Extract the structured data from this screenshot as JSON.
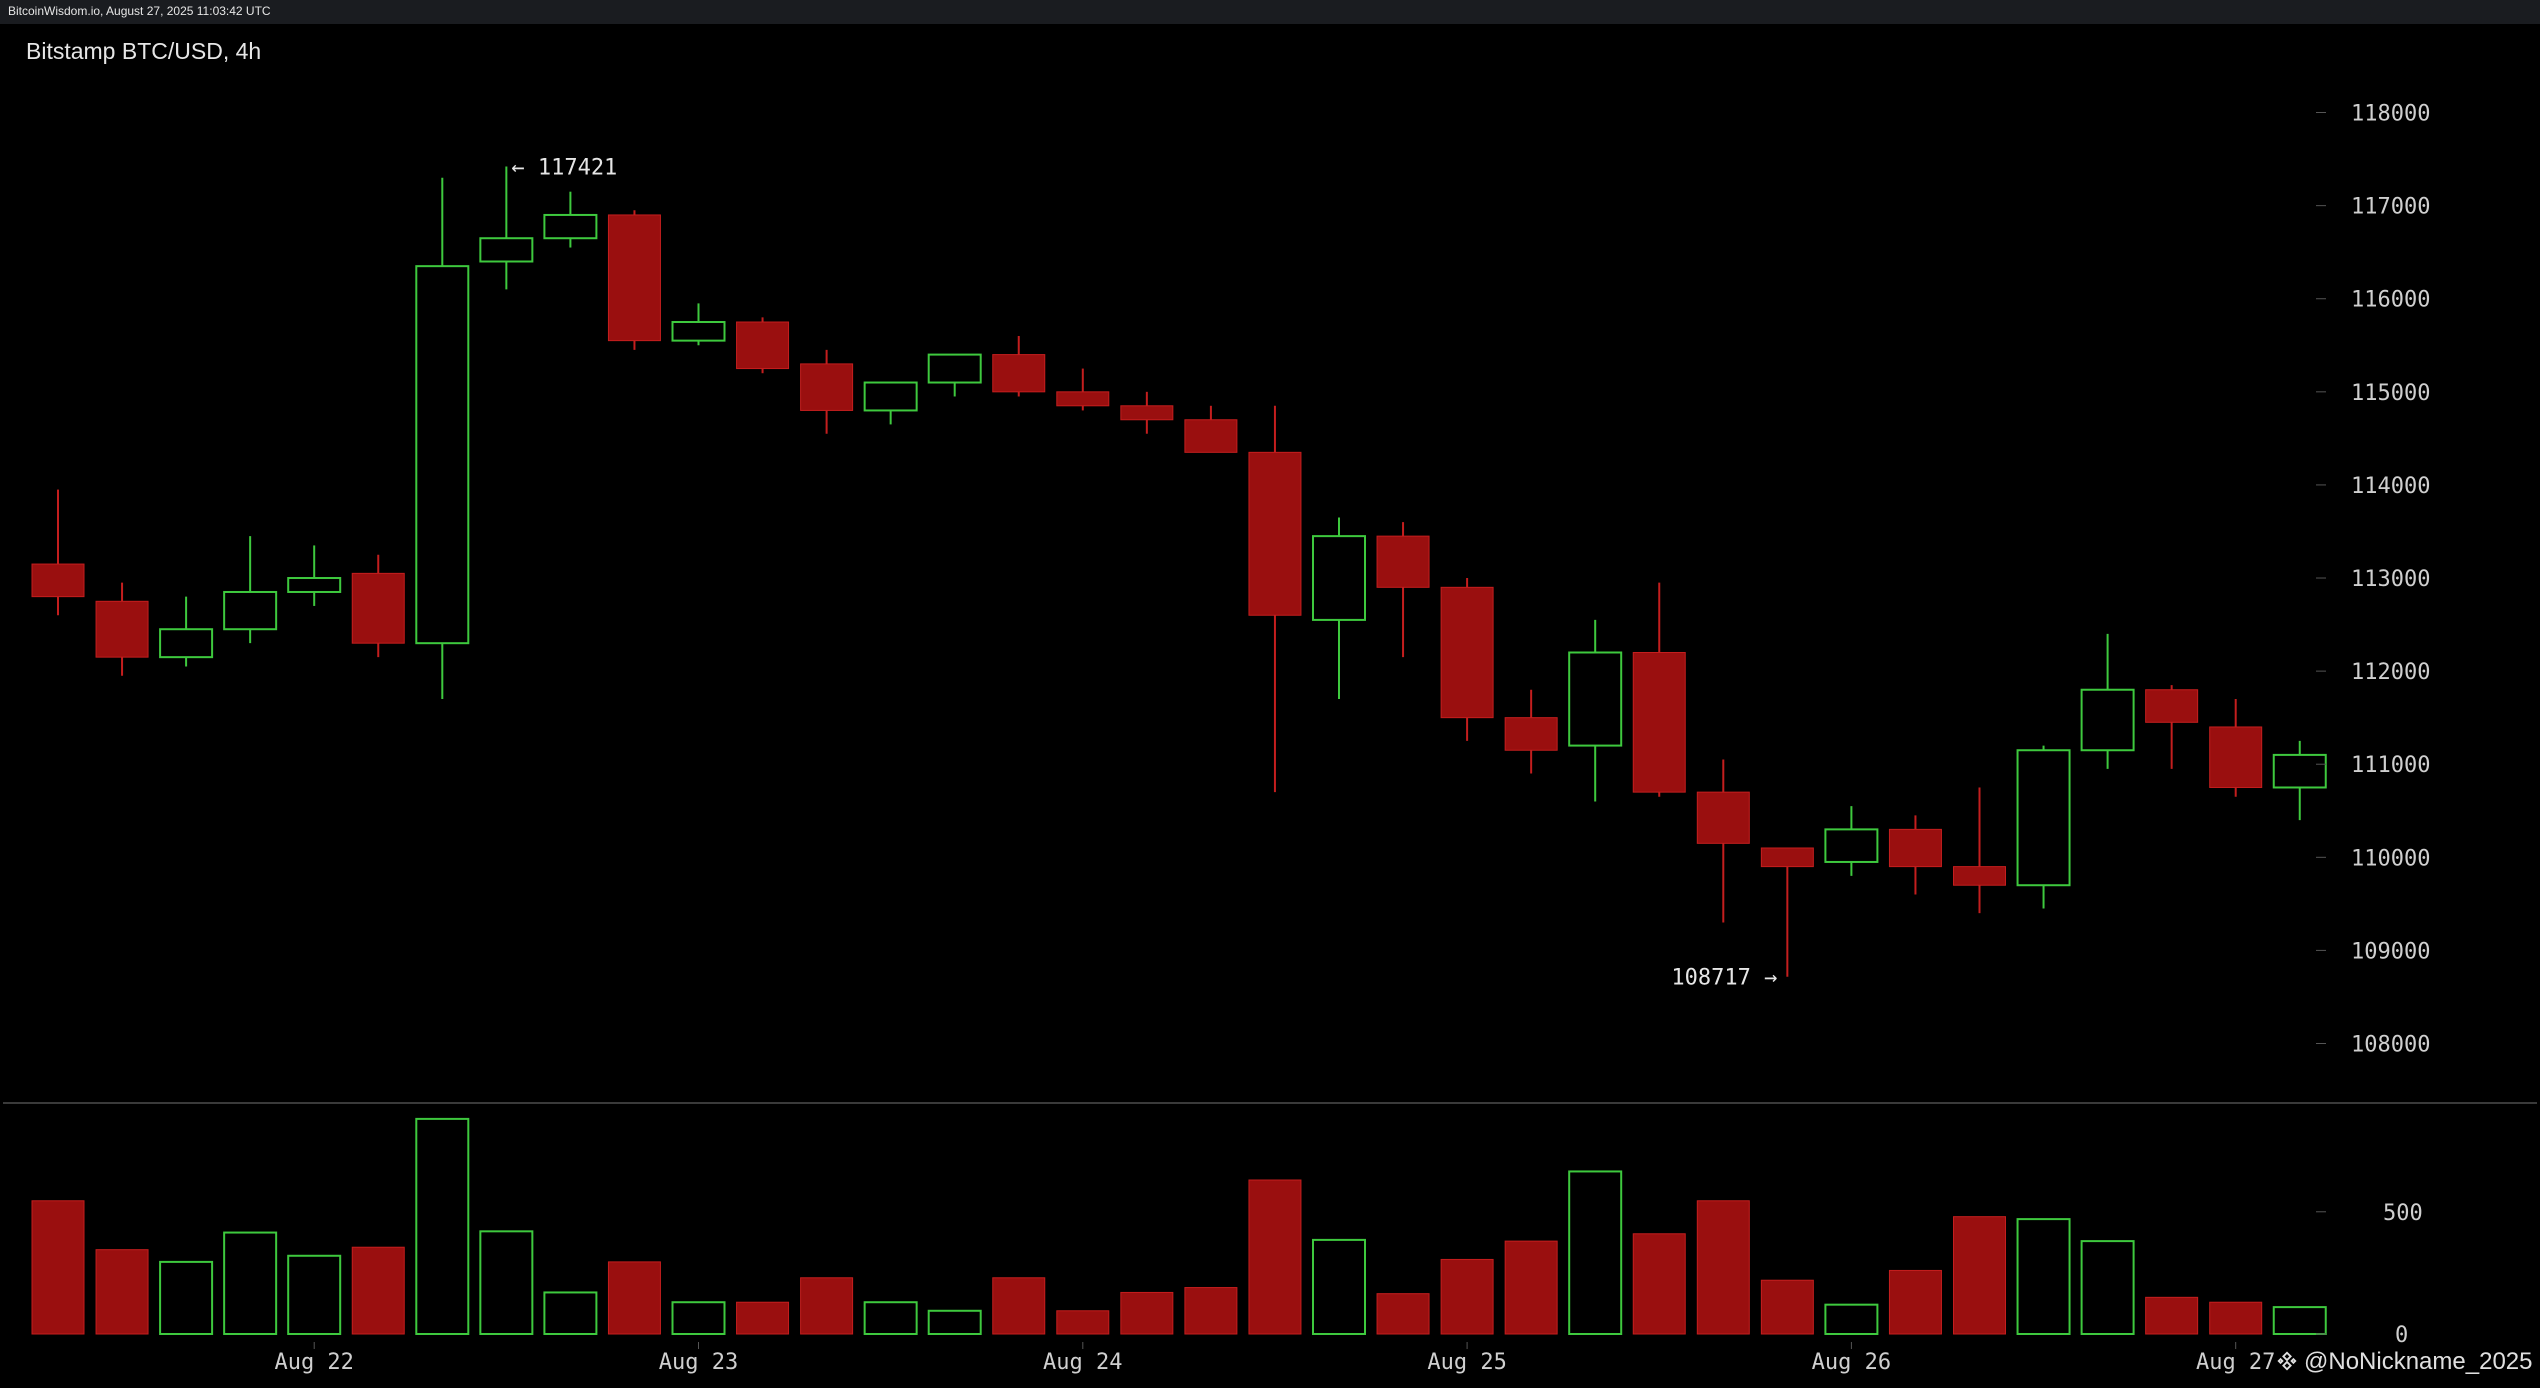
{
  "source_line": "BitcoinWisdom.io, August 27, 2025 11:03:42 UTC",
  "title": "Bitstamp BTC/USD, 4h",
  "watermark": "@NoNickname_2025",
  "watermark_icon": "binance-logo-icon",
  "colors": {
    "up": "#3ec93e",
    "down": "#9a0f0f",
    "down_edge": "#c41e1e",
    "axis_text": "#cfcfcf",
    "background": "#000000",
    "divider": "#3a3a3a"
  },
  "chart_data": {
    "type": "candlestick",
    "price_axis": {
      "ticks": [
        108000,
        109000,
        110000,
        111000,
        112000,
        113000,
        114000,
        115000,
        116000,
        117000,
        118000
      ],
      "range": [
        107350,
        118500
      ]
    },
    "volume_axis": {
      "ticks": [
        0,
        500
      ],
      "range": [
        0,
        900
      ]
    },
    "x_labels": [
      {
        "label": "Aug 22",
        "index": 4
      },
      {
        "label": "Aug 23",
        "index": 10
      },
      {
        "label": "Aug 24",
        "index": 16
      },
      {
        "label": "Aug 25",
        "index": 22
      },
      {
        "label": "Aug 26",
        "index": 28
      },
      {
        "label": "Aug 27",
        "index": 34
      }
    ],
    "annotations": [
      {
        "text": "← 117421",
        "index": 7,
        "price": 117421,
        "side": "right"
      },
      {
        "text": "108717 →",
        "index": 27,
        "price": 108717,
        "side": "left"
      }
    ],
    "candles": [
      {
        "o": 113150,
        "h": 113950,
        "l": 112600,
        "c": 112800,
        "v": 545
      },
      {
        "o": 112750,
        "h": 112950,
        "l": 111950,
        "c": 112150,
        "v": 345
      },
      {
        "o": 112150,
        "h": 112800,
        "l": 112050,
        "c": 112450,
        "v": 295
      },
      {
        "o": 112450,
        "h": 113450,
        "l": 112300,
        "c": 112850,
        "v": 415
      },
      {
        "o": 112850,
        "h": 113350,
        "l": 112700,
        "c": 113000,
        "v": 320
      },
      {
        "o": 113050,
        "h": 113250,
        "l": 112150,
        "c": 112300,
        "v": 355
      },
      {
        "o": 112300,
        "h": 117300,
        "l": 111700,
        "c": 116350,
        "v": 880
      },
      {
        "o": 116400,
        "h": 117421,
        "l": 116100,
        "c": 116650,
        "v": 420
      },
      {
        "o": 116650,
        "h": 117150,
        "l": 116550,
        "c": 116900,
        "v": 170
      },
      {
        "o": 116900,
        "h": 116950,
        "l": 115450,
        "c": 115550,
        "v": 295
      },
      {
        "o": 115550,
        "h": 115950,
        "l": 115500,
        "c": 115750,
        "v": 130
      },
      {
        "o": 115750,
        "h": 115800,
        "l": 115200,
        "c": 115250,
        "v": 130
      },
      {
        "o": 115300,
        "h": 115450,
        "l": 114550,
        "c": 114800,
        "v": 230
      },
      {
        "o": 114800,
        "h": 115100,
        "l": 114650,
        "c": 115100,
        "v": 130
      },
      {
        "o": 115100,
        "h": 115400,
        "l": 114950,
        "c": 115400,
        "v": 95
      },
      {
        "o": 115400,
        "h": 115600,
        "l": 114950,
        "c": 115000,
        "v": 230
      },
      {
        "o": 115000,
        "h": 115250,
        "l": 114800,
        "c": 114850,
        "v": 95
      },
      {
        "o": 114850,
        "h": 115000,
        "l": 114550,
        "c": 114700,
        "v": 170
      },
      {
        "o": 114700,
        "h": 114850,
        "l": 114350,
        "c": 114350,
        "v": 190
      },
      {
        "o": 114350,
        "h": 114850,
        "l": 110700,
        "c": 112600,
        "v": 630
      },
      {
        "o": 112550,
        "h": 113650,
        "l": 111700,
        "c": 113450,
        "v": 385
      },
      {
        "o": 113450,
        "h": 113600,
        "l": 112150,
        "c": 112900,
        "v": 165
      },
      {
        "o": 112900,
        "h": 113000,
        "l": 111250,
        "c": 111500,
        "v": 305
      },
      {
        "o": 111500,
        "h": 111800,
        "l": 110900,
        "c": 111150,
        "v": 380
      },
      {
        "o": 111200,
        "h": 112550,
        "l": 110600,
        "c": 112200,
        "v": 665
      },
      {
        "o": 112200,
        "h": 112950,
        "l": 110650,
        "c": 110700,
        "v": 410
      },
      {
        "o": 110700,
        "h": 111050,
        "l": 109300,
        "c": 110150,
        "v": 545
      },
      {
        "o": 110100,
        "h": 110100,
        "l": 108717,
        "c": 109900,
        "v": 220
      },
      {
        "o": 109950,
        "h": 110550,
        "l": 109800,
        "c": 110300,
        "v": 120
      },
      {
        "o": 110300,
        "h": 110450,
        "l": 109600,
        "c": 109900,
        "v": 260
      },
      {
        "o": 109900,
        "h": 110750,
        "l": 109400,
        "c": 109700,
        "v": 480
      },
      {
        "o": 109700,
        "h": 111200,
        "l": 109450,
        "c": 111150,
        "v": 470
      },
      {
        "o": 111150,
        "h": 112400,
        "l": 110950,
        "c": 111800,
        "v": 380
      },
      {
        "o": 111800,
        "h": 111850,
        "l": 110950,
        "c": 111450,
        "v": 150
      },
      {
        "o": 111400,
        "h": 111700,
        "l": 110650,
        "c": 110750,
        "v": 130
      },
      {
        "o": 110750,
        "h": 111250,
        "l": 110400,
        "c": 111100,
        "v": 110
      }
    ]
  }
}
